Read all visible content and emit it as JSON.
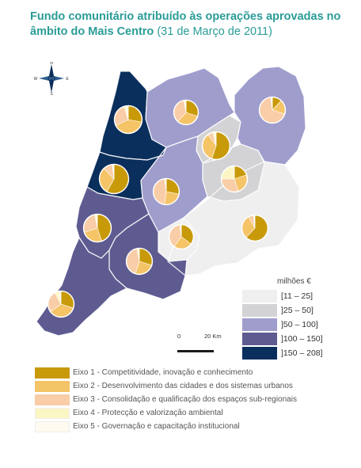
{
  "title": {
    "main": "Fundo comunitário atribuído às operações aprovadas no âmbito do Mais Centro",
    "date": "(31 de Março de 2011)"
  },
  "compass": {
    "n": "N",
    "s": "S",
    "e": "E",
    "w": "W"
  },
  "scale": {
    "start": "0",
    "end": "20 Km"
  },
  "choropleth_legend": {
    "title": "milhões €",
    "classes": [
      {
        "label": "[11 – 25]",
        "color": "#efefef"
      },
      {
        "label": "]25 – 50]",
        "color": "#d3d3d5"
      },
      {
        "label": "]50 – 100]",
        "color": "#9f9dcc"
      },
      {
        "label": "]100 – 150]",
        "color": "#5d5b90"
      },
      {
        "label": "]150 – 208]",
        "color": "#0b2f5c"
      }
    ]
  },
  "eixos": [
    {
      "label": "Eixo 1 - Competitividade, inovação e conhecimento",
      "color": "#c89a0a"
    },
    {
      "label": "Eixo 2 - Desenvolvimento das cidades e dos sistemas urbanos",
      "color": "#f5c467"
    },
    {
      "label": "Eixo 3 - Consolidação e qualificação dos espaços sub-regionais",
      "color": "#f9cda7"
    },
    {
      "label": "Eixo 4 - Protecção e valorização ambiental",
      "color": "#fcf6c4"
    },
    {
      "label": "Eixo 5 - Governação e capacitação institucional",
      "color": "#fdfaf0"
    }
  ],
  "regions": [
    {
      "id": "baixo-vouga",
      "class": 4,
      "pie": [
        0.28,
        0.4,
        0.27,
        0.03,
        0.02
      ]
    },
    {
      "id": "dao-lafoes",
      "class": 2,
      "pie": [
        0.3,
        0.32,
        0.35,
        0.02,
        0.01
      ]
    },
    {
      "id": "beira-interior-norte",
      "class": 2,
      "pie": [
        0.12,
        0.18,
        0.68,
        0.01,
        0.01
      ]
    },
    {
      "id": "serra-da-estrela",
      "class": 1,
      "pie": [
        0.55,
        0.35,
        0.06,
        0.03,
        0.01
      ]
    },
    {
      "id": "baixo-mondego",
      "class": 4,
      "pie": [
        0.58,
        0.3,
        0.1,
        0.01,
        0.01
      ]
    },
    {
      "id": "pinhal-interior-norte",
      "class": 2,
      "pie": [
        0.28,
        0.24,
        0.46,
        0.01,
        0.01
      ]
    },
    {
      "id": "cova-da-beira",
      "class": 1,
      "pie": [
        0.2,
        0.25,
        0.3,
        0.24,
        0.01
      ]
    },
    {
      "id": "beira-interior-sul",
      "class": 0,
      "pie": [
        0.62,
        0.3,
        0.06,
        0.01,
        0.01
      ]
    },
    {
      "id": "pinhal-litoral",
      "class": 3,
      "pie": [
        0.45,
        0.25,
        0.27,
        0.02,
        0.01
      ]
    },
    {
      "id": "pinhal-interior-sul",
      "class": 0,
      "pie": [
        0.35,
        0.25,
        0.38,
        0.01,
        0.01
      ]
    },
    {
      "id": "medio-tejo",
      "class": 3,
      "pie": [
        0.3,
        0.25,
        0.42,
        0.02,
        0.01
      ]
    },
    {
      "id": "oeste",
      "class": 3,
      "pie": [
        0.3,
        0.35,
        0.27,
        0.06,
        0.02
      ]
    }
  ]
}
